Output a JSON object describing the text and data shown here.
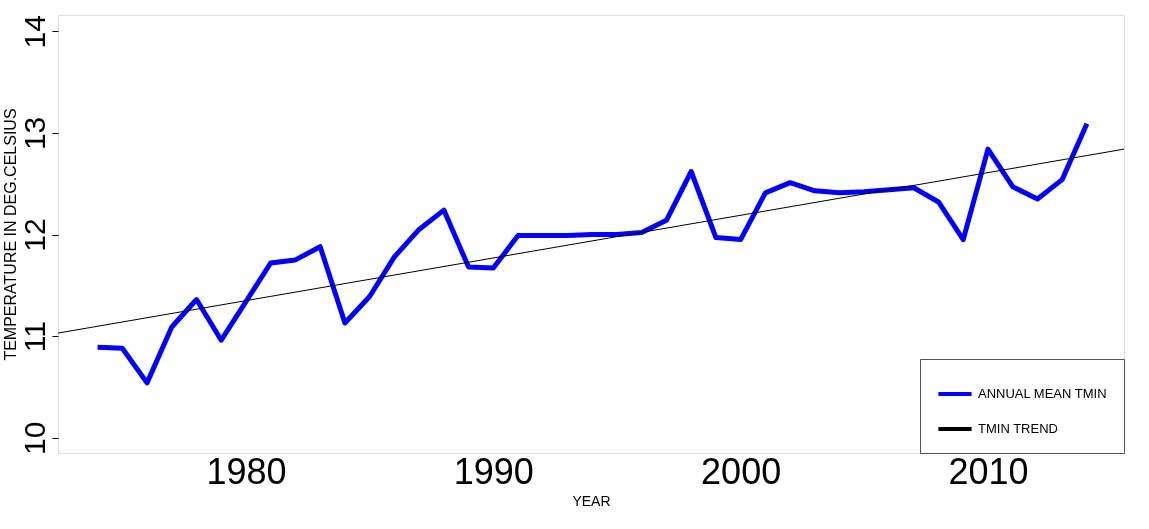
{
  "chart_data": {
    "type": "line",
    "xlabel": "YEAR",
    "ylabel": "TEMPERATURE IN DEG.CELSIUS",
    "x": [
      1974,
      1975,
      1976,
      1977,
      1978,
      1979,
      1980,
      1981,
      1982,
      1983,
      1984,
      1985,
      1986,
      1987,
      1988,
      1989,
      1990,
      1991,
      1992,
      1993,
      1994,
      1995,
      1996,
      1997,
      1998,
      1999,
      2000,
      2001,
      2002,
      2003,
      2004,
      2005,
      2006,
      2007,
      2008,
      2009,
      2010,
      2011,
      2012,
      2013,
      2014
    ],
    "series": [
      {
        "name": "ANNUAL MEAN TMIN",
        "color": "#0000ff",
        "values": [
          10.89,
          10.88,
          10.54,
          11.09,
          11.36,
          10.96,
          11.34,
          11.72,
          11.75,
          11.88,
          11.13,
          11.39,
          11.78,
          12.05,
          12.24,
          11.68,
          11.67,
          11.99,
          11.99,
          11.99,
          12.0,
          12.0,
          12.02,
          12.14,
          12.62,
          11.97,
          11.95,
          12.41,
          12.51,
          12.43,
          12.41,
          12.42,
          12.44,
          12.46,
          12.32,
          11.95,
          12.84,
          12.47,
          12.35,
          12.54,
          13.09
        ]
      },
      {
        "name": "TMIN TREND",
        "color": "#000000",
        "x": [
          1972.4,
          2015.5
        ],
        "values": [
          11.03,
          12.84
        ]
      }
    ],
    "xlim": [
      1972.4,
      2015.5
    ],
    "ylim": [
      9.85,
      14.16
    ],
    "xticks": [
      1980,
      1990,
      2000,
      2010
    ],
    "yticks": [
      10,
      11,
      12,
      13,
      14
    ],
    "grid": false,
    "legend": "bottom right",
    "marker": "none",
    "line_style": "solid"
  }
}
